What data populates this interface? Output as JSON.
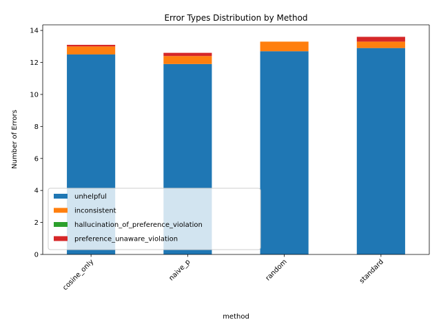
{
  "chart_data": {
    "type": "bar",
    "stacked": true,
    "title": "Error Types Distribution by Method",
    "xlabel": "method",
    "ylabel": "Number of Errors",
    "categories": [
      "cosine_only",
      "naive_p",
      "random",
      "standard"
    ],
    "ylim": [
      0,
      14.35
    ],
    "yticks": [
      0,
      2,
      4,
      6,
      8,
      10,
      12,
      14
    ],
    "series": [
      {
        "name": "unhelpful",
        "color": "#1f77b4",
        "values": [
          12.5,
          11.9,
          12.7,
          12.9
        ]
      },
      {
        "name": "inconsistent",
        "color": "#ff7f0e",
        "values": [
          0.5,
          0.5,
          0.6,
          0.4
        ]
      },
      {
        "name": "hallucination_of_preference_violation",
        "color": "#2ca02c",
        "values": [
          0,
          0,
          0,
          0
        ]
      },
      {
        "name": "preference_unaware_violation",
        "color": "#d62728",
        "values": [
          0.1,
          0.2,
          0,
          0.3
        ]
      }
    ],
    "grid": false,
    "legend_position": "lower-left"
  }
}
